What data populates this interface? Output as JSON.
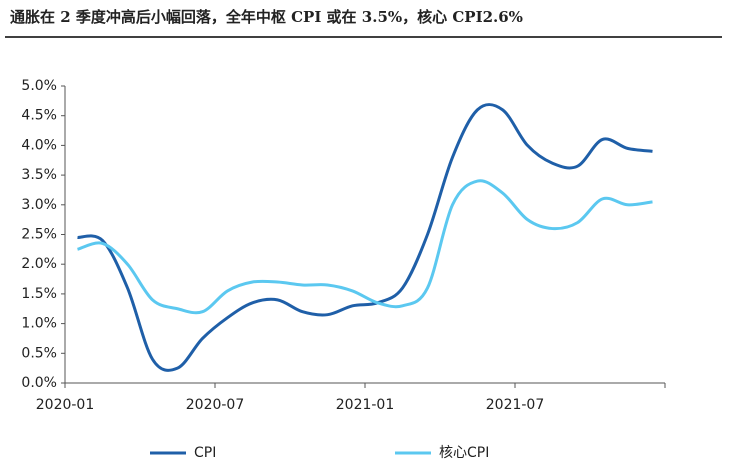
{
  "chart_data": {
    "type": "line",
    "title": "通胀在 2 季度冲高后小幅回落，全年中枢 CPI 或在 3.5%，核心 CPI2.6%",
    "categories": [
      "2020-01",
      null,
      null,
      null,
      null,
      null,
      "2020-07",
      null,
      null,
      null,
      null,
      null,
      "2021-01",
      null,
      null,
      null,
      null,
      null,
      "2021-07",
      null,
      null,
      null,
      null,
      null
    ],
    "series": [
      {
        "name": "CPI",
        "color": "#1f5fa8",
        "values": [
          2.45,
          2.4,
          1.6,
          0.4,
          0.25,
          0.75,
          1.1,
          1.35,
          1.4,
          1.2,
          1.15,
          1.3,
          1.35,
          1.6,
          2.5,
          3.8,
          4.6,
          4.6,
          4.0,
          3.7,
          3.65,
          4.1,
          3.95,
          3.9
        ]
      },
      {
        "name": "核心CPI",
        "color": "#5bc8f0",
        "values": [
          2.25,
          2.35,
          2.0,
          1.4,
          1.25,
          1.2,
          1.55,
          1.7,
          1.7,
          1.65,
          1.65,
          1.55,
          1.35,
          1.3,
          1.6,
          3.0,
          3.4,
          3.2,
          2.75,
          2.6,
          2.7,
          3.1,
          3.0,
          3.05
        ]
      }
    ],
    "ylim": [
      0,
      5
    ],
    "yticks": [
      {
        "value": 0,
        "label": "0.0%"
      },
      {
        "value": 0.5,
        "label": "0.5%"
      },
      {
        "value": 1,
        "label": "1.0%"
      },
      {
        "value": 1.5,
        "label": "1.5%"
      },
      {
        "value": 2,
        "label": "2.0%"
      },
      {
        "value": 2.5,
        "label": "2.5%"
      },
      {
        "value": 3,
        "label": "3.0%"
      },
      {
        "value": 3.5,
        "label": "3.5%"
      },
      {
        "value": 4,
        "label": "4.0%"
      },
      {
        "value": 4.5,
        "label": "4.5%"
      },
      {
        "value": 5,
        "label": "5.0%"
      }
    ],
    "grid": false,
    "legend": "bottom"
  }
}
